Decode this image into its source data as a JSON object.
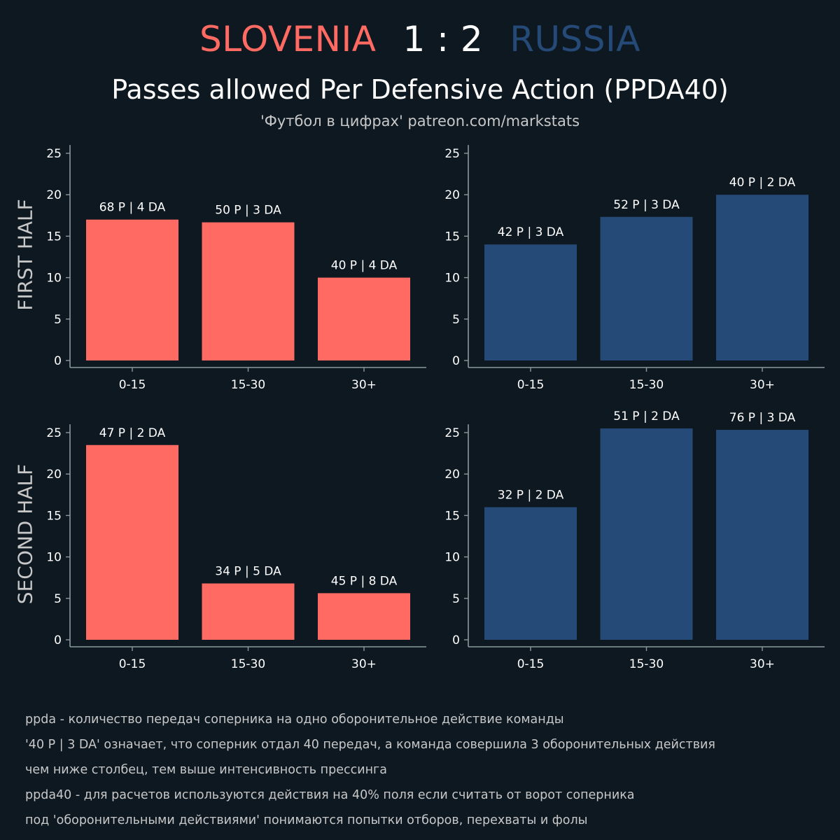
{
  "header": {
    "home_team": "SLOVENIA",
    "score": "1 : 2",
    "away_team": "RUSSIA",
    "title": "Passes allowed Per Defensive Action (PPDA40)",
    "subtitle": "'Футбол в цифрах' patreon.com/markstats"
  },
  "colors": {
    "background": "#0e1821",
    "home": "#ff6b63",
    "away": "#264a78",
    "axis": "#8a9a9a"
  },
  "rows": {
    "first_label": "FIRST HALF",
    "second_label": "SECOND HALF"
  },
  "chart_data": [
    {
      "type": "bar",
      "team": "SLOVENIA",
      "half": "FIRST HALF",
      "categories": [
        "0-15",
        "15-30",
        "30+"
      ],
      "values": [
        17.0,
        16.67,
        10.0
      ],
      "bar_labels": [
        "68 P | 4 DA",
        "50 P | 3 DA",
        "40 P | 4 DA"
      ],
      "yticks": [
        0,
        5,
        10,
        15,
        20,
        25
      ],
      "ylim": [
        0,
        26
      ],
      "color": "#ff6b63"
    },
    {
      "type": "bar",
      "team": "RUSSIA",
      "half": "FIRST HALF",
      "categories": [
        "0-15",
        "15-30",
        "30+"
      ],
      "values": [
        14.0,
        17.33,
        20.0
      ],
      "bar_labels": [
        "42 P | 3 DA",
        "52 P | 3 DA",
        "40 P | 2 DA"
      ],
      "yticks": [
        0,
        5,
        10,
        15,
        20,
        25
      ],
      "ylim": [
        0,
        26
      ],
      "color": "#264a78"
    },
    {
      "type": "bar",
      "team": "SLOVENIA",
      "half": "SECOND HALF",
      "categories": [
        "0-15",
        "15-30",
        "30+"
      ],
      "values": [
        23.5,
        6.8,
        5.625
      ],
      "bar_labels": [
        "47 P | 2 DA",
        "34 P | 5 DA",
        "45 P | 8 DA"
      ],
      "yticks": [
        0,
        5,
        10,
        15,
        20,
        25
      ],
      "ylim": [
        0,
        26
      ],
      "color": "#ff6b63"
    },
    {
      "type": "bar",
      "team": "RUSSIA",
      "half": "SECOND HALF",
      "categories": [
        "0-15",
        "15-30",
        "30+"
      ],
      "values": [
        16.0,
        25.5,
        25.33
      ],
      "bar_labels": [
        "32 P | 2 DA",
        "51 P | 2 DA",
        "76 P | 3 DA"
      ],
      "yticks": [
        0,
        5,
        10,
        15,
        20,
        25
      ],
      "ylim": [
        0,
        26
      ],
      "color": "#264a78"
    }
  ],
  "notes": [
    "ppda - количество передач соперника на одно оборонительное действие команды",
    "'40 P | 3 DA' означает, что соперник отдал 40 передач, а команда совершила 3 оборонительных действия",
    "чем ниже столбец, тем выше интенсивность прессинга",
    "ppda40 - для расчетов используются действия на 40% поля если считать от ворот соперника",
    "под 'оборонительными действиями' понимаются попытки отборов, перехваты и фолы"
  ]
}
